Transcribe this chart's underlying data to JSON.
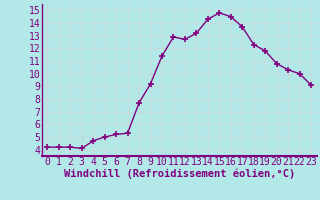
{
  "x": [
    0,
    1,
    2,
    3,
    4,
    5,
    6,
    7,
    8,
    9,
    10,
    11,
    12,
    13,
    14,
    15,
    16,
    17,
    18,
    19,
    20,
    21,
    22,
    23
  ],
  "y": [
    4.2,
    4.2,
    4.2,
    4.1,
    4.7,
    5.0,
    5.2,
    5.3,
    7.7,
    9.2,
    11.4,
    12.9,
    12.7,
    13.2,
    14.3,
    14.8,
    14.5,
    13.7,
    12.3,
    11.8,
    10.8,
    10.3,
    10.0,
    9.1
  ],
  "line_color": "#800080",
  "marker": "+",
  "markersize": 5,
  "linewidth": 1.0,
  "bg_color": "#b2e8e8",
  "grid_color": "#c8dada",
  "xlabel": "Windchill (Refroidissement éolien,°C)",
  "xlabel_color": "#800080",
  "xlabel_fontsize": 7.5,
  "tick_fontsize": 7,
  "tick_color": "#800080",
  "ylim": [
    3.5,
    15.5
  ],
  "xlim": [
    -0.5,
    23.5
  ],
  "yticks": [
    4,
    5,
    6,
    7,
    8,
    9,
    10,
    11,
    12,
    13,
    14,
    15
  ],
  "xticks": [
    0,
    1,
    2,
    3,
    4,
    5,
    6,
    7,
    8,
    9,
    10,
    11,
    12,
    13,
    14,
    15,
    16,
    17,
    18,
    19,
    20,
    21,
    22,
    23
  ],
  "spine_color": "#800080",
  "bottom_spine_color": "#800080"
}
